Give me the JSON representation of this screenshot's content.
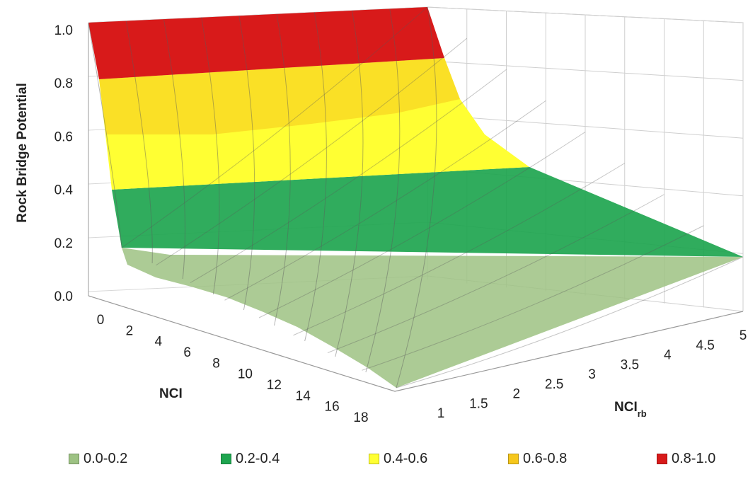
{
  "chart_data": {
    "type": "surface3d",
    "z_axis": {
      "label": "Rock Bridge Potential",
      "ticks": [
        "1.0",
        "0.8",
        "0.6",
        "0.4",
        "0.2",
        "0.0"
      ],
      "range": [
        0,
        1
      ]
    },
    "x_axis": {
      "label": "NCI",
      "ticks": [
        "0",
        "2",
        "4",
        "6",
        "8",
        "10",
        "12",
        "14",
        "16",
        "18"
      ],
      "range": [
        0,
        18
      ]
    },
    "y_axis": {
      "label": "NCI",
      "label_subscript": "rb",
      "ticks": [
        "1",
        "1.5",
        "2",
        "2.5",
        "3",
        "3.5",
        "4",
        "4.5",
        "5"
      ],
      "range": [
        1,
        5
      ]
    },
    "surface": {
      "front_edge_nci_rb_1": [
        [
          0,
          1.0
        ],
        [
          2,
          0.28
        ],
        [
          4,
          0.22
        ],
        [
          8,
          0.16
        ],
        [
          18,
          0.0
        ]
      ],
      "back_edge_nci_0": [
        [
          1,
          1.0
        ],
        [
          2,
          1.0
        ],
        [
          3,
          1.0
        ],
        [
          4,
          1.0
        ],
        [
          5,
          1.0
        ]
      ],
      "far_corner_nci_18_nci_rb_5": 0.16
    },
    "legend": [
      {
        "label": "0.0-0.2",
        "color": "#9dc283"
      },
      {
        "label": "0.2-0.4",
        "color": "#1ea54f"
      },
      {
        "label": "0.4-0.6",
        "color": "#ffff33"
      },
      {
        "label": "0.6-0.8",
        "color": "#f6c71c"
      },
      {
        "label": "0.8-1.0",
        "color": "#d81a1a"
      }
    ],
    "legend_position": "bottom",
    "grid": true
  }
}
